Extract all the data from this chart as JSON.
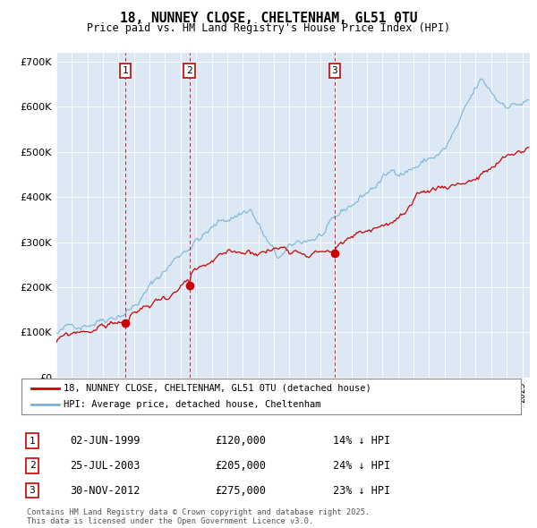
{
  "title": "18, NUNNEY CLOSE, CHELTENHAM, GL51 0TU",
  "subtitle": "Price paid vs. HM Land Registry's House Price Index (HPI)",
  "background_color": "#ffffff",
  "plot_bg_color": "#dce9f5",
  "grid_color": "#ffffff",
  "hpi_color": "#7ab3d8",
  "price_color": "#cc0000",
  "vline_color": "#cc0000",
  "ylim": [
    0,
    720000
  ],
  "yticks": [
    0,
    100000,
    200000,
    300000,
    400000,
    500000,
    600000,
    700000
  ],
  "ytick_labels": [
    "£0",
    "£100K",
    "£200K",
    "£300K",
    "£400K",
    "£500K",
    "£600K",
    "£700K"
  ],
  "sale_prices": [
    120000,
    205000,
    275000
  ],
  "sale_labels": [
    "1",
    "2",
    "3"
  ],
  "sale_year_floats": [
    1999.42,
    2003.56,
    2012.92
  ],
  "sale_info": [
    {
      "label": "1",
      "date": "02-JUN-1999",
      "price": "£120,000",
      "hpi_diff": "14% ↓ HPI"
    },
    {
      "label": "2",
      "date": "25-JUL-2003",
      "price": "£205,000",
      "hpi_diff": "24% ↓ HPI"
    },
    {
      "label": "3",
      "date": "30-NOV-2012",
      "price": "£275,000",
      "hpi_diff": "23% ↓ HPI"
    }
  ],
  "legend_entries": [
    "18, NUNNEY CLOSE, CHELTENHAM, GL51 0TU (detached house)",
    "HPI: Average price, detached house, Cheltenham"
  ],
  "footnote": "Contains HM Land Registry data © Crown copyright and database right 2025.\nThis data is licensed under the Open Government Licence v3.0."
}
